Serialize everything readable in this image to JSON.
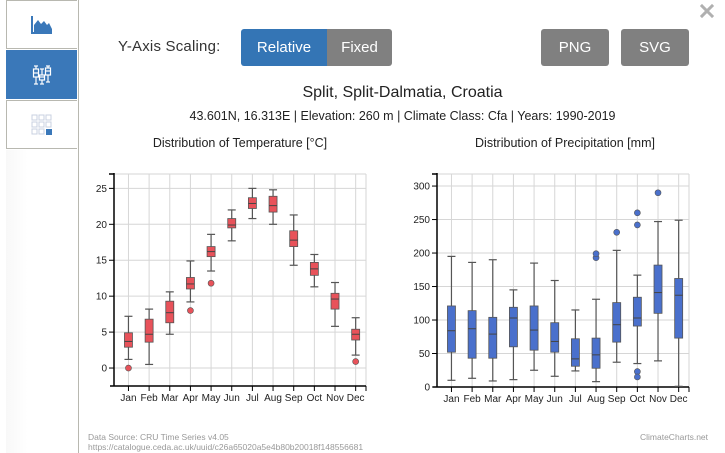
{
  "sidebar": {
    "tabs": [
      {
        "name": "climate-chart-tab",
        "icon": "area-chart-icon",
        "active": false
      },
      {
        "name": "boxplot-tab",
        "icon": "boxplot-icon",
        "active": true
      },
      {
        "name": "grid-tab",
        "icon": "grid-icon",
        "active": false
      }
    ]
  },
  "controls": {
    "scaling_label": "Y-Axis Scaling:",
    "relative_label": "Relative",
    "fixed_label": "Fixed",
    "selected": "Relative",
    "png_label": "PNG",
    "svg_label": "SVG",
    "close_icon": "close-icon"
  },
  "header": {
    "title": "Split, Split-Dalmatia, Croatia",
    "subtitle": "43.601N, 16.313E | Elevation: 260 m | Climate Class: Cfa | Years: 1990-2019"
  },
  "colors": {
    "temperature_box": "#e8525a",
    "precipitation_box": "#4a70cc",
    "accent": "#3475b5",
    "button_gray": "#808080"
  },
  "chart_data": [
    {
      "type": "boxplot",
      "title": "Distribution of Temperature [°C]",
      "xlabel": "",
      "ylabel": "",
      "ylim": [
        -2.5,
        27
      ],
      "yticks": [
        0,
        5,
        10,
        15,
        20,
        25
      ],
      "grid": true,
      "categories": [
        "Jan",
        "Feb",
        "Mar",
        "Apr",
        "May",
        "Jun",
        "Jul",
        "Aug",
        "Sep",
        "Oct",
        "Nov",
        "Dec"
      ],
      "boxes": [
        {
          "low": 1.2,
          "q1": 2.9,
          "median": 3.7,
          "q3": 4.9,
          "high": 7.2,
          "outliers": [
            0.0
          ]
        },
        {
          "low": 0.5,
          "q1": 3.6,
          "median": 4.7,
          "q3": 6.8,
          "high": 8.2,
          "outliers": []
        },
        {
          "low": 4.7,
          "q1": 6.3,
          "median": 7.7,
          "q3": 9.3,
          "high": 10.6,
          "outliers": []
        },
        {
          "low": 9.2,
          "q1": 11.0,
          "median": 11.7,
          "q3": 12.6,
          "high": 14.9,
          "outliers": [
            8.0
          ]
        },
        {
          "low": 13.5,
          "q1": 15.5,
          "median": 16.2,
          "q3": 16.9,
          "high": 18.6,
          "outliers": [
            11.8
          ]
        },
        {
          "low": 17.7,
          "q1": 19.5,
          "median": 19.9,
          "q3": 20.8,
          "high": 22.0,
          "outliers": []
        },
        {
          "low": 20.8,
          "q1": 22.2,
          "median": 22.9,
          "q3": 23.7,
          "high": 25.0,
          "outliers": []
        },
        {
          "low": 20.0,
          "q1": 21.7,
          "median": 22.6,
          "q3": 23.9,
          "high": 24.8,
          "outliers": []
        },
        {
          "low": 14.3,
          "q1": 16.9,
          "median": 17.8,
          "q3": 19.1,
          "high": 21.3,
          "outliers": []
        },
        {
          "low": 11.3,
          "q1": 12.9,
          "median": 13.8,
          "q3": 14.7,
          "high": 15.8,
          "outliers": []
        },
        {
          "low": 5.8,
          "q1": 8.2,
          "median": 9.6,
          "q3": 10.4,
          "high": 11.9,
          "outliers": []
        },
        {
          "low": 1.8,
          "q1": 3.9,
          "median": 4.7,
          "q3": 5.4,
          "high": 7.0,
          "outliers": [
            0.9
          ]
        }
      ]
    },
    {
      "type": "boxplot",
      "title": "Distribution of Precipitation [mm]",
      "xlabel": "",
      "ylabel": "",
      "ylim": [
        0,
        318
      ],
      "yticks": [
        0,
        50,
        100,
        150,
        200,
        250,
        300
      ],
      "grid": true,
      "categories": [
        "Jan",
        "Feb",
        "Mar",
        "Apr",
        "May",
        "Jun",
        "Jul",
        "Aug",
        "Sep",
        "Oct",
        "Nov",
        "Dec"
      ],
      "boxes": [
        {
          "low": 10,
          "q1": 52,
          "median": 84,
          "q3": 121,
          "high": 195,
          "outliers": []
        },
        {
          "low": 13,
          "q1": 43,
          "median": 87,
          "q3": 114,
          "high": 186,
          "outliers": []
        },
        {
          "low": 9,
          "q1": 43,
          "median": 79,
          "q3": 104,
          "high": 190,
          "outliers": []
        },
        {
          "low": 11,
          "q1": 60,
          "median": 103,
          "q3": 119,
          "high": 145,
          "outliers": []
        },
        {
          "low": 25,
          "q1": 55,
          "median": 85,
          "q3": 121,
          "high": 185,
          "outliers": []
        },
        {
          "low": 16,
          "q1": 52,
          "median": 68,
          "q3": 96,
          "high": 159,
          "outliers": []
        },
        {
          "low": 24,
          "q1": 31,
          "median": 42,
          "q3": 72,
          "high": 115,
          "outliers": []
        },
        {
          "low": 8,
          "q1": 28,
          "median": 48,
          "q3": 73,
          "high": 131,
          "outliers": [
            193,
            199
          ]
        },
        {
          "low": 37,
          "q1": 67,
          "median": 93,
          "q3": 126,
          "high": 204,
          "outliers": [
            231
          ]
        },
        {
          "low": 35,
          "q1": 91,
          "median": 103,
          "q3": 134,
          "high": 167,
          "outliers": [
            242,
            260,
            23,
            15
          ]
        },
        {
          "low": 39,
          "q1": 110,
          "median": 141,
          "q3": 182,
          "high": 247,
          "outliers": [
            290
          ]
        },
        {
          "low": 1,
          "q1": 73,
          "median": 137,
          "q3": 162,
          "high": 249,
          "outliers": []
        }
      ]
    }
  ],
  "footer": {
    "source_line1": "Data Source: CRU Time Series v4.05",
    "source_line2": "https://catalogue.ceda.ac.uk/uuid/c26a65020a5e4b80b20018f148556681",
    "brand": "ClimateCharts.net"
  }
}
